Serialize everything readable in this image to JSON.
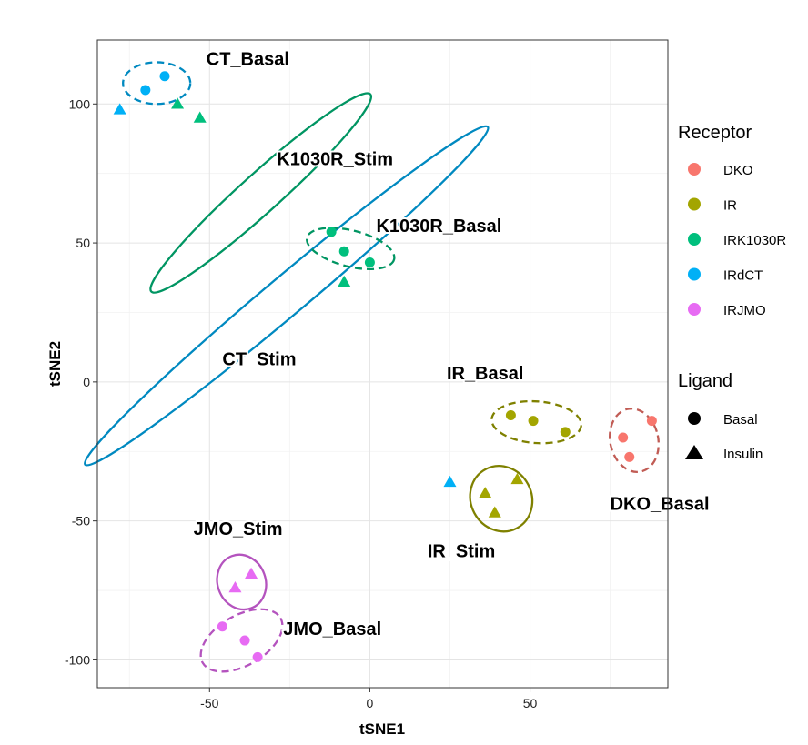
{
  "chart_data": {
    "type": "scatter",
    "xlabel": "tSNE1",
    "ylabel": "tSNE2",
    "xlim": [
      -85,
      93
    ],
    "ylim": [
      -110,
      123
    ],
    "x_ticks": [
      -50,
      0,
      50
    ],
    "y_ticks": [
      -100,
      -50,
      0,
      50,
      100
    ],
    "grid": true,
    "colors": {
      "DKO": "#F8766D",
      "IR": "#A3A500",
      "IRK1030R": "#00BF7D",
      "IRdCT": "#00B0F6",
      "IRJMO": "#E76BF3"
    },
    "points": [
      {
        "x": -70,
        "y": 105,
        "receptor": "IRdCT",
        "ligand": "Basal"
      },
      {
        "x": -64,
        "y": 110,
        "receptor": "IRdCT",
        "ligand": "Basal"
      },
      {
        "x": -78,
        "y": 98,
        "receptor": "IRdCT",
        "ligand": "Insulin"
      },
      {
        "x": 25,
        "y": -36,
        "receptor": "IRdCT",
        "ligand": "Insulin"
      },
      {
        "x": -60,
        "y": 100,
        "receptor": "IRK1030R",
        "ligand": "Insulin"
      },
      {
        "x": -53,
        "y": 95,
        "receptor": "IRK1030R",
        "ligand": "Insulin"
      },
      {
        "x": -8,
        "y": 36,
        "receptor": "IRK1030R",
        "ligand": "Insulin"
      },
      {
        "x": -12,
        "y": 54,
        "receptor": "IRK1030R",
        "ligand": "Basal"
      },
      {
        "x": -8,
        "y": 47,
        "receptor": "IRK1030R",
        "ligand": "Basal"
      },
      {
        "x": 0,
        "y": 43,
        "receptor": "IRK1030R",
        "ligand": "Basal"
      },
      {
        "x": 44,
        "y": -12,
        "receptor": "IR",
        "ligand": "Basal"
      },
      {
        "x": 51,
        "y": -14,
        "receptor": "IR",
        "ligand": "Basal"
      },
      {
        "x": 61,
        "y": -18,
        "receptor": "IR",
        "ligand": "Basal"
      },
      {
        "x": 36,
        "y": -40,
        "receptor": "IR",
        "ligand": "Insulin"
      },
      {
        "x": 39,
        "y": -47,
        "receptor": "IR",
        "ligand": "Insulin"
      },
      {
        "x": 46,
        "y": -35,
        "receptor": "IR",
        "ligand": "Insulin"
      },
      {
        "x": 79,
        "y": -20,
        "receptor": "DKO",
        "ligand": "Basal"
      },
      {
        "x": 81,
        "y": -27,
        "receptor": "DKO",
        "ligand": "Basal"
      },
      {
        "x": 88,
        "y": -14,
        "receptor": "DKO",
        "ligand": "Basal"
      },
      {
        "x": -42,
        "y": -74,
        "receptor": "IRJMO",
        "ligand": "Insulin"
      },
      {
        "x": -37,
        "y": -69,
        "receptor": "IRJMO",
        "ligand": "Insulin"
      },
      {
        "x": -46,
        "y": -88,
        "receptor": "IRJMO",
        "ligand": "Basal"
      },
      {
        "x": -39,
        "y": -93,
        "receptor": "IRJMO",
        "ligand": "Basal"
      },
      {
        "x": -35,
        "y": -99,
        "receptor": "IRJMO",
        "ligand": "Basal"
      }
    ],
    "clusters": [
      {
        "name": "CT_Basal",
        "receptor": "IRdCT",
        "dashed": true,
        "cx": -66.5,
        "cy": 107.5,
        "rx": 10.5,
        "ry": 7.5,
        "angle": 0,
        "label_x": -51,
        "label_y": 114
      },
      {
        "name": "K1030R_Stim",
        "receptor": "IRK1030R",
        "dashed": false,
        "cx": -34,
        "cy": 68,
        "rx": 46,
        "ry": 7,
        "angle": 42,
        "label_x": -29,
        "label_y": 78
      },
      {
        "name": "CT_Stim",
        "receptor": "IRdCT",
        "dashed": false,
        "cx": -26,
        "cy": 31,
        "rx": 82,
        "ry": 7,
        "angle": 40,
        "label_x": -46,
        "label_y": 6
      },
      {
        "name": "K1030R_Basal",
        "receptor": "IRK1030R",
        "dashed": true,
        "cx": -6,
        "cy": 48,
        "rx": 14,
        "ry": 6.5,
        "angle": -14,
        "label_x": 2,
        "label_y": 54
      },
      {
        "name": "IR_Basal",
        "receptor": "IR",
        "dashed": true,
        "cx": 52,
        "cy": -14.5,
        "rx": 14,
        "ry": 7.5,
        "angle": -4,
        "label_x": 24,
        "label_y": 1
      },
      {
        "name": "IR_Stim",
        "receptor": "IR",
        "dashed": false,
        "cx": 41,
        "cy": -42,
        "rx": 9.5,
        "ry": 12,
        "angle": 28,
        "label_x": 18,
        "label_y": -63
      },
      {
        "name": "DKO_Basal",
        "receptor": "DKO",
        "dashed": true,
        "cx": 82.5,
        "cy": -21,
        "rx": 7.5,
        "ry": 11.5,
        "angle": 12,
        "label_x": 75,
        "label_y": -46
      },
      {
        "name": "JMO_Stim",
        "receptor": "IRJMO",
        "dashed": false,
        "cx": -40,
        "cy": -72,
        "rx": 7.5,
        "ry": 10,
        "angle": 20,
        "label_x": -55,
        "label_y": -55
      },
      {
        "name": "JMO_Basal",
        "receptor": "IRJMO",
        "dashed": true,
        "cx": -40,
        "cy": -93,
        "rx": 14,
        "ry": 9,
        "angle": 30,
        "label_x": -27,
        "label_y": -91
      }
    ],
    "legend": {
      "receptor_title": "Receptor",
      "receptors": [
        "DKO",
        "IR",
        "IRK1030R",
        "IRdCT",
        "IRJMO"
      ],
      "ligand_title": "Ligand",
      "ligands": [
        "Basal",
        "Insulin"
      ]
    }
  }
}
